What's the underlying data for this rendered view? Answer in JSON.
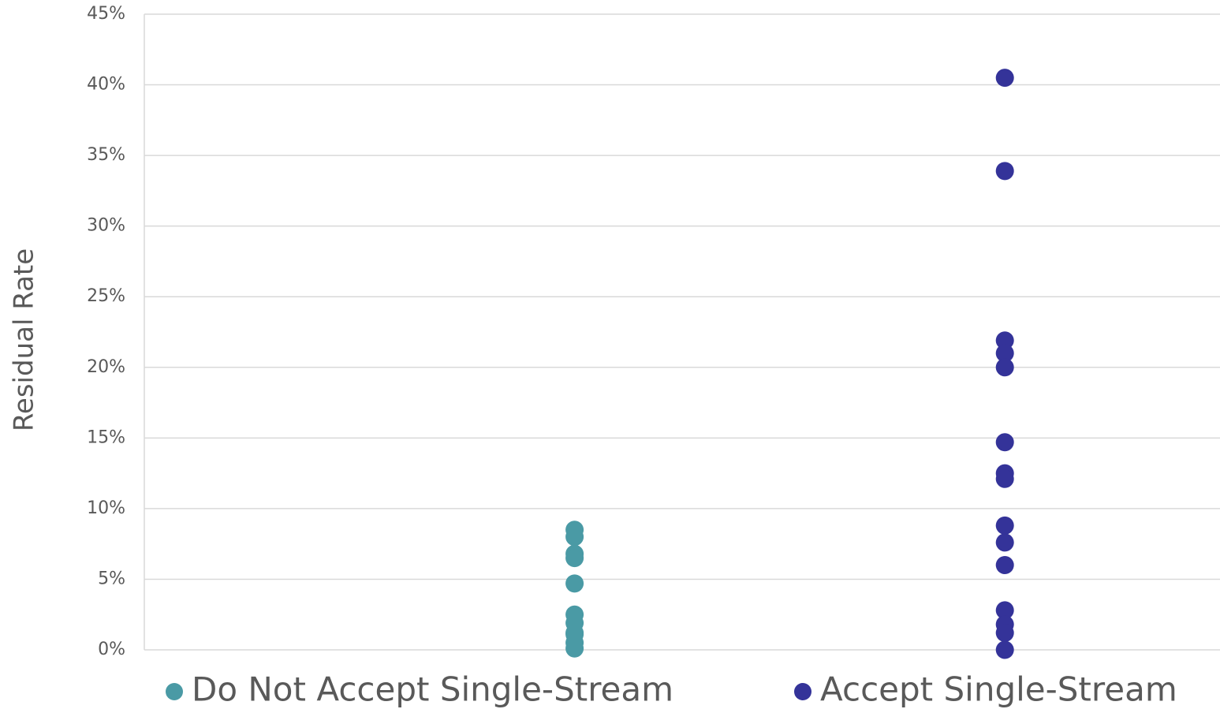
{
  "chart_data": {
    "type": "scatter",
    "y_label": "Residual Rate",
    "ylim": [
      0,
      45
    ],
    "yticks": [
      {
        "value": 0,
        "label": "0%"
      },
      {
        "value": 5,
        "label": "5%"
      },
      {
        "value": 10,
        "label": "10%"
      },
      {
        "value": 15,
        "label": "15%"
      },
      {
        "value": 20,
        "label": "20%"
      },
      {
        "value": 25,
        "label": "25%"
      },
      {
        "value": 30,
        "label": "30%"
      },
      {
        "value": 35,
        "label": "35%"
      },
      {
        "value": 40,
        "label": "40%"
      },
      {
        "value": 45,
        "label": "45%"
      }
    ],
    "grid": true,
    "legend": "bottom",
    "series": [
      {
        "name": "Do Not Accept Single-Stream",
        "color": "#4a9aa5",
        "values": [
          8.5,
          8.0,
          6.8,
          6.5,
          4.7,
          2.5,
          1.9,
          1.2,
          1.1,
          0.5,
          0.1
        ]
      },
      {
        "name": "Accept Single-Stream",
        "color": "#343399",
        "values": [
          40.5,
          33.9,
          21.9,
          21.0,
          20.0,
          14.7,
          12.5,
          12.1,
          8.8,
          7.6,
          6.0,
          2.8,
          1.8,
          1.2,
          0
        ]
      }
    ]
  }
}
